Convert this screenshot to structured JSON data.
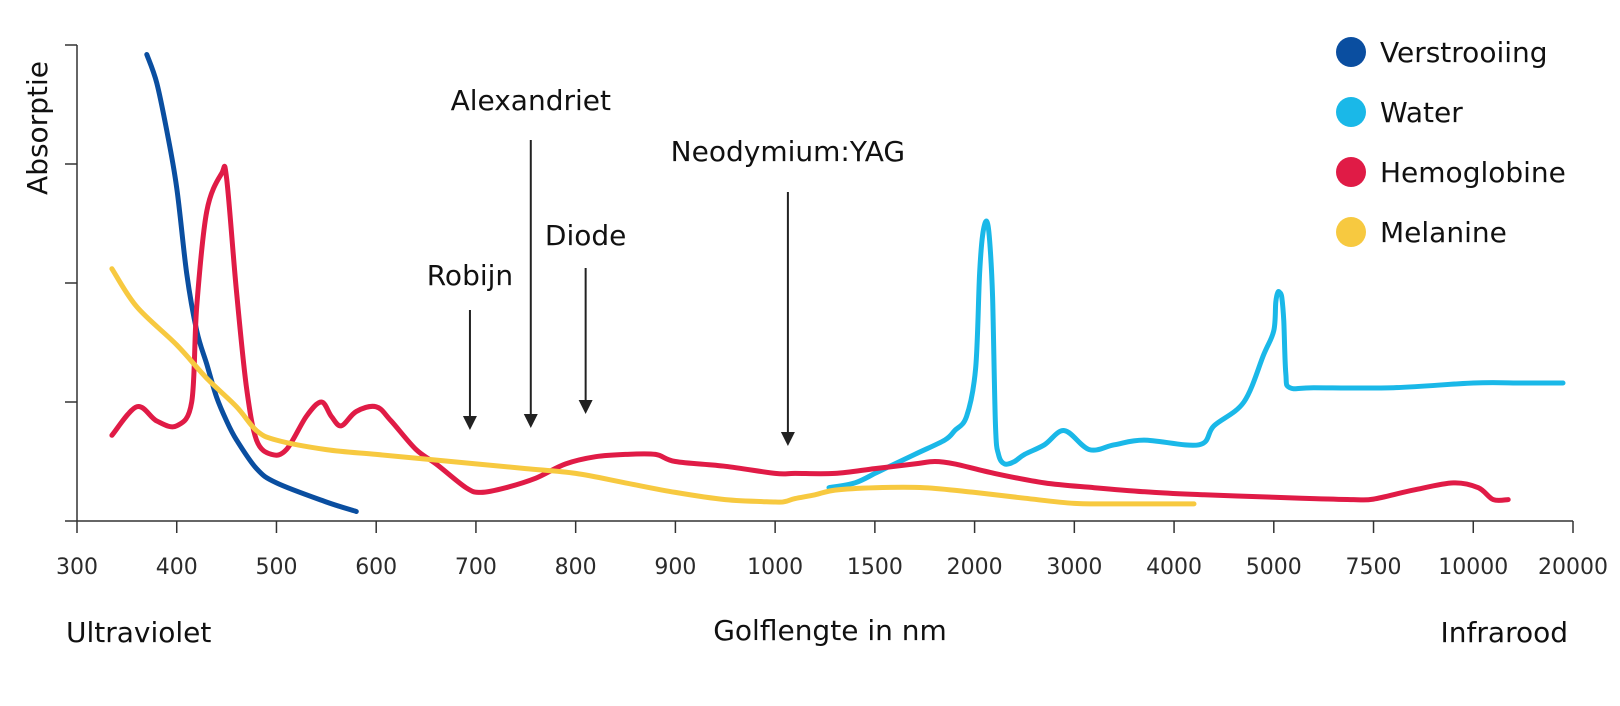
{
  "chart_data": {
    "type": "line",
    "ylabel": "Absorptie",
    "xlabel": "Golflengte in nm",
    "x_ticks": [
      "300",
      "400",
      "500",
      "600",
      "700",
      "800",
      "900",
      "1000",
      "1500",
      "2000",
      "3000",
      "4000",
      "5000",
      "7500",
      "10000",
      "20000"
    ],
    "y_ticks": 5,
    "ylim": [
      0,
      100
    ],
    "region_labels": {
      "left": "Ultraviolet",
      "right": "Infrarood"
    },
    "legend_position": "top-right",
    "series": [
      {
        "name": "Verstrooiing",
        "color": "#0a4ea0",
        "points": [
          [
            370,
            98
          ],
          [
            380,
            92
          ],
          [
            390,
            82
          ],
          [
            400,
            70
          ],
          [
            410,
            52
          ],
          [
            420,
            40
          ],
          [
            430,
            33
          ],
          [
            440,
            26
          ],
          [
            450,
            21
          ],
          [
            460,
            17
          ],
          [
            480,
            11
          ],
          [
            500,
            8
          ],
          [
            550,
            4
          ],
          [
            580,
            2
          ]
        ]
      },
      {
        "name": "Water",
        "color": "#1ab8e8",
        "points": [
          [
            1270,
            7
          ],
          [
            1400,
            8
          ],
          [
            1500,
            10
          ],
          [
            1550,
            11
          ],
          [
            1700,
            14
          ],
          [
            1850,
            17
          ],
          [
            1900,
            19
          ],
          [
            1960,
            22
          ],
          [
            2010,
            32
          ],
          [
            2050,
            52
          ],
          [
            2080,
            60
          ],
          [
            2120,
            63
          ],
          [
            2150,
            59
          ],
          [
            2180,
            47
          ],
          [
            2210,
            20
          ],
          [
            2240,
            14
          ],
          [
            2300,
            12
          ],
          [
            2400,
            12.5
          ],
          [
            2500,
            14
          ],
          [
            2700,
            16
          ],
          [
            2900,
            19
          ],
          [
            3150,
            15
          ],
          [
            3400,
            16
          ],
          [
            3700,
            17
          ],
          [
            4250,
            16
          ],
          [
            4400,
            20
          ],
          [
            4700,
            25
          ],
          [
            4900,
            35
          ],
          [
            5000,
            40
          ],
          [
            5050,
            46
          ],
          [
            5100,
            48
          ],
          [
            5150,
            48
          ],
          [
            5200,
            47
          ],
          [
            5250,
            42
          ],
          [
            5300,
            31
          ],
          [
            5400,
            28
          ],
          [
            6000,
            28
          ],
          [
            8000,
            28
          ],
          [
            10000,
            29
          ],
          [
            15000,
            29
          ],
          [
            19000,
            29
          ]
        ]
      },
      {
        "name": "Hemoglobine",
        "color": "#e01b46",
        "points": [
          [
            335,
            18
          ],
          [
            360,
            24
          ],
          [
            380,
            21
          ],
          [
            400,
            20
          ],
          [
            415,
            25
          ],
          [
            420,
            45
          ],
          [
            430,
            65
          ],
          [
            445,
            73
          ],
          [
            450,
            72
          ],
          [
            460,
            48
          ],
          [
            470,
            28
          ],
          [
            480,
            17
          ],
          [
            495,
            14
          ],
          [
            510,
            15
          ],
          [
            530,
            22
          ],
          [
            545,
            25
          ],
          [
            555,
            22
          ],
          [
            565,
            20
          ],
          [
            580,
            23
          ],
          [
            600,
            24
          ],
          [
            615,
            21
          ],
          [
            640,
            15
          ],
          [
            660,
            12
          ],
          [
            690,
            7
          ],
          [
            705,
            6
          ],
          [
            730,
            7
          ],
          [
            760,
            9
          ],
          [
            790,
            12
          ],
          [
            820,
            13.5
          ],
          [
            850,
            14
          ],
          [
            880,
            14
          ],
          [
            900,
            12.5
          ],
          [
            950,
            11.5
          ],
          [
            1000,
            10
          ],
          [
            1100,
            10
          ],
          [
            1300,
            10
          ],
          [
            1500,
            11
          ],
          [
            1700,
            12
          ],
          [
            1800,
            12.5
          ],
          [
            1900,
            12
          ],
          [
            2200,
            10
          ],
          [
            2700,
            8
          ],
          [
            3200,
            7
          ],
          [
            3800,
            6
          ],
          [
            4300,
            5.5
          ],
          [
            5000,
            5
          ],
          [
            6000,
            4.7
          ],
          [
            7000,
            4.5
          ],
          [
            7500,
            4.6
          ],
          [
            8500,
            6.5
          ],
          [
            9500,
            8
          ],
          [
            10500,
            7
          ],
          [
            12000,
            4.5
          ],
          [
            13500,
            4.5
          ]
        ]
      },
      {
        "name": "Melanine",
        "color": "#f7c940",
        "points": [
          [
            335,
            53
          ],
          [
            360,
            45
          ],
          [
            400,
            37
          ],
          [
            430,
            30
          ],
          [
            460,
            24
          ],
          [
            480,
            19
          ],
          [
            500,
            17
          ],
          [
            550,
            15
          ],
          [
            600,
            14
          ],
          [
            650,
            13
          ],
          [
            700,
            12
          ],
          [
            750,
            11
          ],
          [
            800,
            10
          ],
          [
            850,
            8
          ],
          [
            900,
            6
          ],
          [
            950,
            4.5
          ],
          [
            1000,
            4
          ],
          [
            1050,
            4.1
          ],
          [
            1100,
            4.7
          ],
          [
            1200,
            5.5
          ],
          [
            1300,
            6.5
          ],
          [
            1500,
            7
          ],
          [
            1750,
            7
          ],
          [
            2000,
            6
          ],
          [
            2500,
            4.8
          ],
          [
            3000,
            3.7
          ],
          [
            3500,
            3.6
          ],
          [
            4000,
            3.6
          ],
          [
            4200,
            3.6
          ]
        ]
      }
    ],
    "annotations": [
      {
        "label": "Robijn",
        "x": 694
      },
      {
        "label": "Alexandriet",
        "x": 755
      },
      {
        "label": "Diode",
        "x": 810
      },
      {
        "label": "Neodymium:YAG",
        "x": 1064
      }
    ]
  }
}
